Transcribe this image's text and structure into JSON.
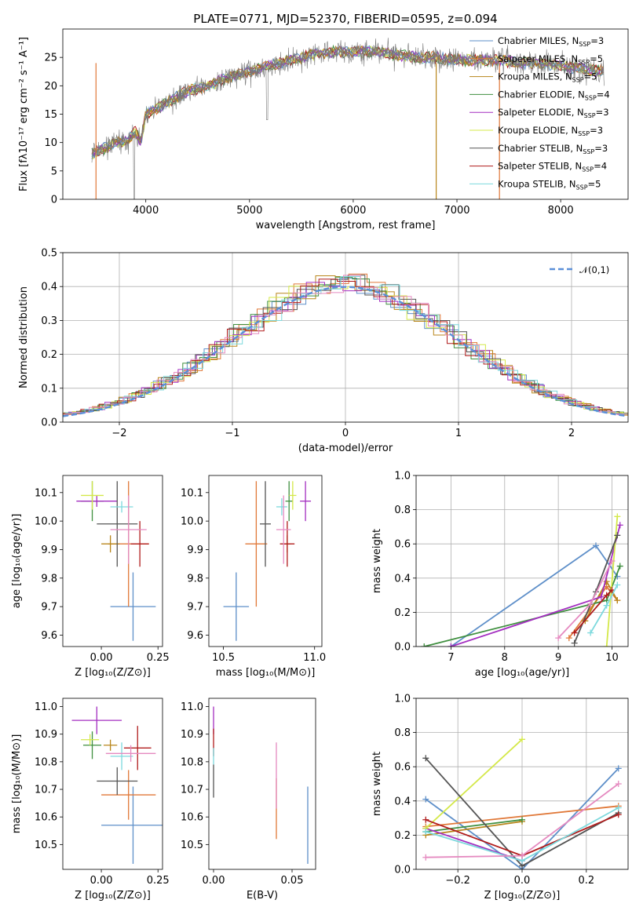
{
  "figure": {
    "title": "PLATE=0771, MJD=52370, FIBERID=0595, z=0.094"
  },
  "colors": {
    "chabrier_miles": "#5e8fc9",
    "salpeter_miles": "#e07838",
    "kroupa_miles": "#b8861b",
    "chabrier_elodie": "#3f8f3f",
    "salpeter_elodie": "#a32ec0",
    "kroupa_elodie": "#d4e84a",
    "chabrier_stelib": "#555555",
    "salpeter_stelib": "#b01b1b",
    "kroupa_stelib": "#7dd9dd",
    "pink": "#e58ac0",
    "gaussian": "#5a8fd8"
  },
  "chart_data": [
    {
      "id": "spectrum",
      "type": "line",
      "title": "PLATE=0771, MJD=52370, FIBERID=0595, z=0.094",
      "xlabel": "wavelength [Angstrom, rest frame]",
      "ylabel": "Flux [fλ10⁻¹⁷ erg cm⁻² s⁻¹ A⁻¹]",
      "xlim": [
        3200,
        8650
      ],
      "ylim": [
        0,
        30
      ],
      "xticks": [
        4000,
        5000,
        6000,
        7000,
        8000
      ],
      "yticks": [
        0,
        5,
        10,
        15,
        20,
        25
      ],
      "legend": [
        {
          "label": "Chabrier MILES, N",
          "sub": "SSP",
          "tail": "=3",
          "color_key": "chabrier_miles"
        },
        {
          "label": "Salpeter MILES, N",
          "sub": "SSP",
          "tail": "=5",
          "color_key": "salpeter_miles"
        },
        {
          "label": "Kroupa MILES, N",
          "sub": "SSP",
          "tail": "=5",
          "color_key": "kroupa_miles"
        },
        {
          "label": "Chabrier ELODIE, N",
          "sub": "SSP",
          "tail": "=4",
          "color_key": "chabrier_elodie"
        },
        {
          "label": "Salpeter ELODIE, N",
          "sub": "SSP",
          "tail": "=3",
          "color_key": "salpeter_elodie"
        },
        {
          "label": "Kroupa ELODIE, N",
          "sub": "SSP",
          "tail": "=3",
          "color_key": "kroupa_elodie"
        },
        {
          "label": "Chabrier STELIB, N",
          "sub": "SSP",
          "tail": "=3",
          "color_key": "chabrier_stelib"
        },
        {
          "label": "Salpeter STELIB, N",
          "sub": "SSP",
          "tail": "=4",
          "color_key": "salpeter_stelib"
        },
        {
          "label": "Kroupa STELIB, N",
          "sub": "SSP",
          "tail": "=5",
          "color_key": "kroupa_stelib"
        }
      ],
      "continuum": [
        [
          3480,
          8
        ],
        [
          3600,
          9
        ],
        [
          3700,
          10
        ],
        [
          3800,
          10
        ],
        [
          3900,
          12
        ],
        [
          3950,
          10
        ],
        [
          4000,
          15
        ],
        [
          4100,
          16
        ],
        [
          4200,
          17
        ],
        [
          4300,
          18
        ],
        [
          4400,
          19
        ],
        [
          4600,
          20
        ],
        [
          4800,
          21.5
        ],
        [
          5000,
          22.5
        ],
        [
          5200,
          23.5
        ],
        [
          5400,
          24.5
        ],
        [
          5600,
          25.5
        ],
        [
          5800,
          26
        ],
        [
          6000,
          26
        ],
        [
          6200,
          26
        ],
        [
          6400,
          25.5
        ],
        [
          6600,
          25
        ],
        [
          6800,
          25
        ],
        [
          7000,
          24.5
        ],
        [
          7200,
          24.5
        ],
        [
          7400,
          24.5
        ],
        [
          7600,
          24
        ],
        [
          7800,
          24
        ],
        [
          8000,
          23.5
        ],
        [
          8200,
          23
        ],
        [
          8420,
          22.5
        ]
      ]
    },
    {
      "id": "residual-histogram",
      "type": "line",
      "xlabel": "(data-model)/error",
      "ylabel": "Normed distribution",
      "xlim": [
        -2.5,
        2.5
      ],
      "ylim": [
        0,
        0.5
      ],
      "xticks": [
        -2,
        -1,
        0,
        1,
        2
      ],
      "yticks": [
        0.0,
        0.1,
        0.2,
        0.3,
        0.4,
        0.5
      ],
      "grid": true,
      "legend": "upper right",
      "series": [
        {
          "name": "𝒩(0,1)",
          "style": "dashed",
          "function": "standard-normal"
        }
      ]
    },
    {
      "id": "age-vs-z",
      "type": "scatter",
      "xlabel": "Z [log₁₀(Z/Z⊙)]",
      "ylabel": "age  [log₁₀(age/yr)]",
      "xlim": [
        -0.17,
        0.27
      ],
      "ylim": [
        9.56,
        10.16
      ],
      "xticks": [
        0.0,
        0.25
      ],
      "yticks": [
        9.6,
        9.7,
        9.8,
        9.9,
        10.0,
        10.1
      ],
      "points": [
        {
          "color_key": "chabrier_miles",
          "x": 0.14,
          "y": 9.7,
          "xerr": 0.1,
          "yerr": 0.12
        },
        {
          "color_key": "salpeter_miles",
          "x": 0.12,
          "y": 9.92,
          "xerr": 0.09,
          "yerr": 0.22
        },
        {
          "color_key": "kroupa_miles",
          "x": 0.04,
          "y": 9.92,
          "xerr": 0.04,
          "yerr": 0.03
        },
        {
          "color_key": "chabrier_elodie",
          "x": -0.04,
          "y": 10.07,
          "xerr": 0.05,
          "yerr": 0.07
        },
        {
          "color_key": "salpeter_elodie",
          "x": -0.02,
          "y": 10.07,
          "xerr": 0.09,
          "yerr": 0.02
        },
        {
          "color_key": "kroupa_elodie",
          "x": -0.04,
          "y": 10.09,
          "xerr": 0.05,
          "yerr": 0.05
        },
        {
          "color_key": "chabrier_stelib",
          "x": 0.07,
          "y": 9.99,
          "xerr": 0.09,
          "yerr": 0.15
        },
        {
          "color_key": "salpeter_stelib",
          "x": 0.17,
          "y": 9.92,
          "xerr": 0.04,
          "yerr": 0.08
        },
        {
          "color_key": "kroupa_stelib",
          "x": 0.09,
          "y": 10.05,
          "xerr": 0.05,
          "yerr": 0.02
        },
        {
          "color_key": "pink",
          "x": 0.12,
          "y": 9.97,
          "xerr": 0.08,
          "yerr": 0.12
        }
      ]
    },
    {
      "id": "age-vs-mass",
      "type": "scatter",
      "xlabel": "mass [log₁₀(M/M⊙)]",
      "xlim": [
        10.42,
        11.04
      ],
      "ylim": [
        9.56,
        10.16
      ],
      "xticks": [
        10.5,
        11.0
      ],
      "yticks": [
        9.6,
        9.7,
        9.8,
        9.9,
        10.0,
        10.1
      ],
      "points": [
        {
          "color_key": "chabrier_miles",
          "x": 10.57,
          "y": 9.7,
          "xerr": 0.07,
          "yerr": 0.12
        },
        {
          "color_key": "salpeter_miles",
          "x": 10.68,
          "y": 9.92,
          "xerr": 0.06,
          "yerr": 0.22
        },
        {
          "color_key": "kroupa_miles",
          "x": 10.85,
          "y": 9.92,
          "xerr": 0.02,
          "yerr": 0.03
        },
        {
          "color_key": "chabrier_elodie",
          "x": 10.86,
          "y": 10.07,
          "xerr": 0.02,
          "yerr": 0.07
        },
        {
          "color_key": "salpeter_elodie",
          "x": 10.95,
          "y": 10.07,
          "xerr": 0.03,
          "yerr": 0.07
        },
        {
          "color_key": "kroupa_elodie",
          "x": 10.88,
          "y": 10.09,
          "xerr": 0.02,
          "yerr": 0.05
        },
        {
          "color_key": "chabrier_stelib",
          "x": 10.73,
          "y": 9.99,
          "xerr": 0.03,
          "yerr": 0.15
        },
        {
          "color_key": "salpeter_stelib",
          "x": 10.85,
          "y": 9.92,
          "xerr": 0.04,
          "yerr": 0.08
        },
        {
          "color_key": "kroupa_stelib",
          "x": 10.82,
          "y": 10.05,
          "xerr": 0.03,
          "yerr": 0.03
        },
        {
          "color_key": "pink",
          "x": 10.83,
          "y": 9.97,
          "xerr": 0.04,
          "yerr": 0.12
        }
      ]
    },
    {
      "id": "weights-vs-age",
      "type": "line",
      "xlabel": "age  [log₁₀(age/yr)]",
      "ylabel": "mass weight",
      "xlim": [
        6.35,
        10.3
      ],
      "ylim": [
        0,
        1
      ],
      "xticks": [
        7,
        8,
        9,
        10
      ],
      "yticks": [
        0.0,
        0.2,
        0.4,
        0.6,
        0.8,
        1.0
      ],
      "grid": true,
      "series": [
        {
          "color_key": "chabrier_miles",
          "points": [
            [
              7.0,
              0.0
            ],
            [
              9.7,
              0.59
            ],
            [
              10.1,
              0.41
            ]
          ]
        },
        {
          "color_key": "salpeter_miles",
          "points": [
            [
              9.2,
              0.05
            ],
            [
              9.9,
              0.35
            ],
            [
              10.1,
              0.27
            ]
          ]
        },
        {
          "color_key": "kroupa_miles",
          "points": [
            [
              9.5,
              0.15
            ],
            [
              9.9,
              0.38
            ],
            [
              10.1,
              0.27
            ]
          ]
        },
        {
          "color_key": "chabrier_elodie",
          "points": [
            [
              6.5,
              0.0
            ],
            [
              9.9,
              0.27
            ],
            [
              10.15,
              0.47
            ]
          ]
        },
        {
          "color_key": "salpeter_elodie",
          "points": [
            [
              7.0,
              0.0
            ],
            [
              9.8,
              0.29
            ],
            [
              10.15,
              0.71
            ]
          ]
        },
        {
          "color_key": "kroupa_elodie",
          "points": [
            [
              9.9,
              0.0
            ],
            [
              10.1,
              0.76
            ]
          ]
        },
        {
          "color_key": "chabrier_stelib",
          "points": [
            [
              9.3,
              0.02
            ],
            [
              9.7,
              0.32
            ],
            [
              10.1,
              0.65
            ]
          ]
        },
        {
          "color_key": "salpeter_stelib",
          "points": [
            [
              9.3,
              0.08
            ],
            [
              9.9,
              0.3
            ],
            [
              10.0,
              0.33
            ]
          ]
        },
        {
          "color_key": "kroupa_stelib",
          "points": [
            [
              9.6,
              0.08
            ],
            [
              9.9,
              0.24
            ],
            [
              10.1,
              0.36
            ]
          ]
        },
        {
          "color_key": "pink",
          "points": [
            [
              9.0,
              0.05
            ],
            [
              9.6,
              0.25
            ],
            [
              10.0,
              0.5
            ]
          ]
        }
      ]
    },
    {
      "id": "mass-vs-z",
      "type": "scatter",
      "xlabel": "Z [log₁₀(Z/Z⊙)]",
      "ylabel": "mass [log₁₀(M/M⊙)]",
      "xlim": [
        -0.17,
        0.27
      ],
      "ylim": [
        10.41,
        11.03
      ],
      "xticks": [
        0.0,
        0.25
      ],
      "yticks": [
        10.5,
        10.6,
        10.7,
        10.8,
        10.9,
        11.0
      ],
      "points": [
        {
          "color_key": "chabrier_miles",
          "x": 0.14,
          "y": 10.57,
          "xerr": 0.14,
          "yerr": 0.14
        },
        {
          "color_key": "salpeter_miles",
          "x": 0.12,
          "y": 10.68,
          "xerr": 0.12,
          "yerr": 0.09
        },
        {
          "color_key": "kroupa_miles",
          "x": 0.04,
          "y": 10.86,
          "xerr": 0.03,
          "yerr": 0.02
        },
        {
          "color_key": "chabrier_elodie",
          "x": -0.04,
          "y": 10.86,
          "xerr": 0.04,
          "yerr": 0.05
        },
        {
          "color_key": "salpeter_elodie",
          "x": -0.02,
          "y": 10.95,
          "xerr": 0.11,
          "yerr": 0.05
        },
        {
          "color_key": "kroupa_elodie",
          "x": -0.05,
          "y": 10.88,
          "xerr": 0.04,
          "yerr": 0.02
        },
        {
          "color_key": "chabrier_stelib",
          "x": 0.07,
          "y": 10.73,
          "xerr": 0.09,
          "yerr": 0.05
        },
        {
          "color_key": "salpeter_stelib",
          "x": 0.16,
          "y": 10.85,
          "xerr": 0.06,
          "yerr": 0.08
        },
        {
          "color_key": "kroupa_stelib",
          "x": 0.09,
          "y": 10.82,
          "xerr": 0.05,
          "yerr": 0.05
        },
        {
          "color_key": "pink",
          "x": 0.13,
          "y": 10.83,
          "xerr": 0.11,
          "yerr": 0.03
        }
      ]
    },
    {
      "id": "mass-vs-ebv",
      "type": "scatter",
      "xlabel": "E(B-V)",
      "xlim": [
        -0.003,
        0.065
      ],
      "ylim": [
        10.41,
        11.03
      ],
      "xticks": [
        0.0,
        0.05
      ],
      "yticks": [
        10.5,
        10.6,
        10.7,
        10.8,
        10.9,
        11.0
      ],
      "points": [
        {
          "color_key": "chabrier_miles",
          "x": 0.06,
          "y": 10.57,
          "yerr": 0.14
        },
        {
          "color_key": "salpeter_miles",
          "x": 0.04,
          "y": 10.63,
          "yerr": 0.11
        },
        {
          "color_key": "pink",
          "x": 0.04,
          "y": 10.75,
          "yerr": 0.12
        },
        {
          "color_key": "salpeter_elodie",
          "x": 0.0,
          "y": 10.95,
          "yerr": 0.05
        },
        {
          "color_key": "chabrier_stelib",
          "x": 0.0,
          "y": 10.73,
          "yerr": 0.06
        },
        {
          "color_key": "salpeter_stelib",
          "x": 0.0,
          "y": 10.87,
          "yerr": 0.05
        },
        {
          "color_key": "kroupa_stelib",
          "x": 0.0,
          "y": 10.82,
          "yerr": 0.03
        }
      ]
    },
    {
      "id": "weights-vs-z",
      "type": "line",
      "xlabel": "Z [log₁₀(Z/Z⊙)]",
      "ylabel": "mass weight",
      "xlim": [
        -0.33,
        0.33
      ],
      "ylim": [
        0,
        1
      ],
      "xticks": [
        -0.2,
        0.0,
        0.2
      ],
      "yticks": [
        0.0,
        0.2,
        0.4,
        0.6,
        0.8,
        1.0
      ],
      "grid": true,
      "series": [
        {
          "color_key": "chabrier_miles",
          "points": [
            [
              -0.3,
              0.41
            ],
            [
              0.0,
              0.0
            ],
            [
              0.3,
              0.59
            ]
          ]
        },
        {
          "color_key": "salpeter_miles",
          "points": [
            [
              -0.3,
              0.25
            ],
            [
              0.3,
              0.37
            ]
          ]
        },
        {
          "color_key": "kroupa_miles",
          "points": [
            [
              -0.3,
              0.2
            ],
            [
              0.0,
              0.28
            ]
          ]
        },
        {
          "color_key": "chabrier_elodie",
          "points": [
            [
              -0.3,
              0.22
            ],
            [
              0.0,
              0.29
            ]
          ]
        },
        {
          "color_key": "salpeter_elodie",
          "points": [
            [
              -0.3,
              0.24
            ],
            [
              0.0,
              0.05
            ]
          ]
        },
        {
          "color_key": "kroupa_elodie",
          "points": [
            [
              -0.3,
              0.24
            ],
            [
              0.0,
              0.76
            ]
          ]
        },
        {
          "color_key": "chabrier_stelib",
          "points": [
            [
              -0.3,
              0.65
            ],
            [
              0.0,
              0.02
            ],
            [
              0.3,
              0.33
            ]
          ]
        },
        {
          "color_key": "salpeter_stelib",
          "points": [
            [
              -0.3,
              0.29
            ],
            [
              0.0,
              0.08
            ],
            [
              0.3,
              0.32
            ]
          ]
        },
        {
          "color_key": "kroupa_stelib",
          "points": [
            [
              -0.3,
              0.22
            ],
            [
              0.0,
              0.05
            ],
            [
              0.3,
              0.36
            ]
          ]
        },
        {
          "color_key": "pink",
          "points": [
            [
              -0.3,
              0.07
            ],
            [
              0.0,
              0.08
            ],
            [
              0.3,
              0.5
            ]
          ]
        }
      ]
    }
  ]
}
